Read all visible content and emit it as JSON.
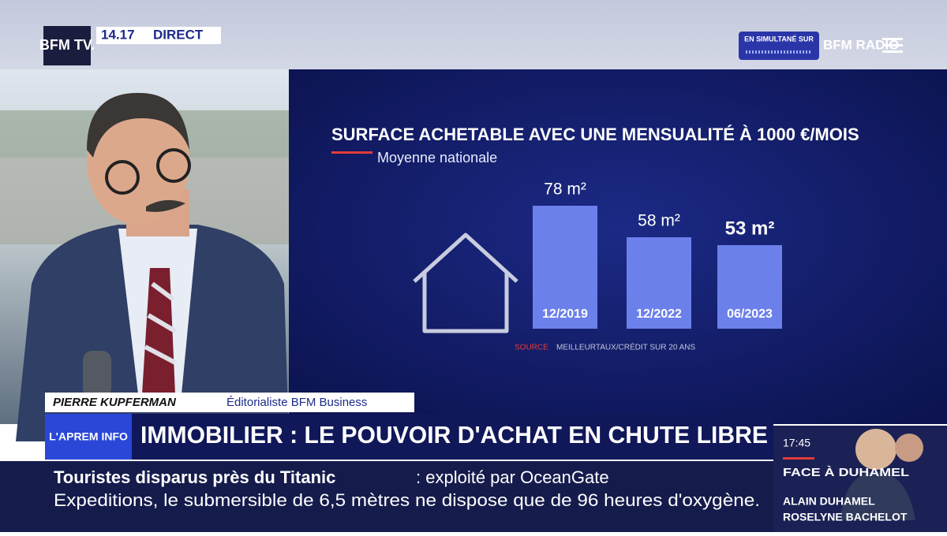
{
  "header": {
    "logo": "BFM TV.",
    "time": "14.17",
    "live": "DIRECT",
    "simulcast": "EN SIMULTANÉ SUR",
    "radio_logo": "BFM RADIO"
  },
  "chart_data": {
    "type": "bar",
    "title": "SURFACE ACHETABLE AVEC UNE MENSUALITÉ À 1000 €/MOIS",
    "subtitle": "Moyenne nationale",
    "categories": [
      "12/2019",
      "12/2022",
      "06/2023"
    ],
    "values": [
      78,
      58,
      53
    ],
    "value_labels": [
      "78 m²",
      "58 m²",
      "53 m²"
    ],
    "color": "#6b80ea",
    "source_label": "SOURCE",
    "source": "MEILLEURTAUX/CRÉDIT SUR 20 ANS"
  },
  "lower_third": {
    "name": "PIERRE KUPFERMAN",
    "role": "Éditorialiste BFM Business",
    "show_logo": "L'APREM INFO",
    "headline": "IMMOBILIER : LE POUVOIR D'ACHAT EN CHUTE LIBRE"
  },
  "ticker": {
    "topic": "Touristes disparus près du Titanic",
    "line1": ": exploité par OceanGate",
    "line2": "Expeditions, le submersible de 6,5 mètres ne dispose que de 96 heures d'oxygène."
  },
  "next_show": {
    "time": "17:45",
    "title": "FACE À DUHAMEL",
    "guest1": "ALAIN DUHAMEL",
    "guest2": "ROSELYNE BACHELOT"
  }
}
